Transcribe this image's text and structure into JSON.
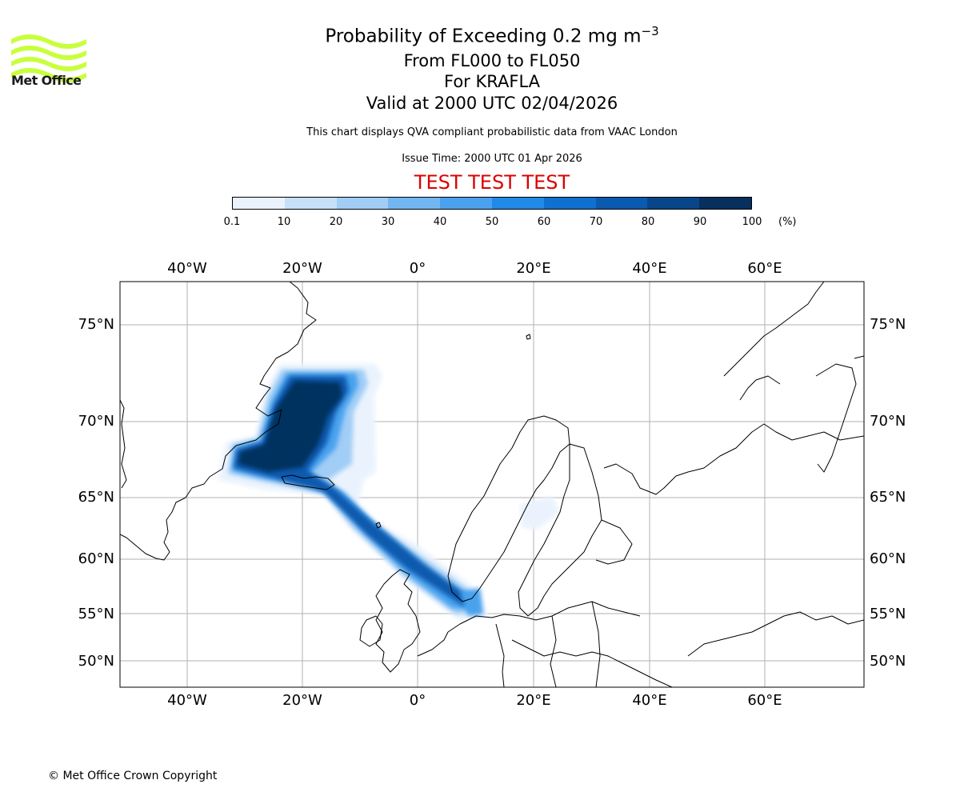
{
  "header": {
    "title": "Probability of Exceeding 0.2 mg m",
    "title_superscript": "−3",
    "level_range": "From FL000 to FL050",
    "volcano": "For KRAFLA",
    "valid_time": "Valid at 2000 UTC 02/04/2026",
    "description": "This chart displays QVA compliant probabilistic data from VAAC London",
    "issue_time": "Issue Time: 2000 UTC 01 Apr 2026",
    "test_banner": "TEST TEST TEST"
  },
  "logo": {
    "text": "Met Office",
    "color": "#c8ff3c"
  },
  "colorbar": {
    "ticks": [
      "0.1",
      "10",
      "20",
      "30",
      "40",
      "50",
      "60",
      "70",
      "80",
      "90",
      "100"
    ],
    "unit": "(%)",
    "colors": [
      "#eaf3fd",
      "#c6e0fa",
      "#a1cdf6",
      "#72b6f2",
      "#4aa2ee",
      "#2189e8",
      "#1070cf",
      "#0a5aaf",
      "#084589",
      "#06305e"
    ]
  },
  "map": {
    "lon_labels": [
      "40°W",
      "20°W",
      "0°",
      "20°E",
      "40°E",
      "60°E"
    ],
    "lat_labels": [
      "75°N",
      "70°N",
      "65°N",
      "60°N",
      "55°N",
      "50°N"
    ]
  },
  "footer": {
    "copyright": "© Met Office Crown Copyright"
  }
}
